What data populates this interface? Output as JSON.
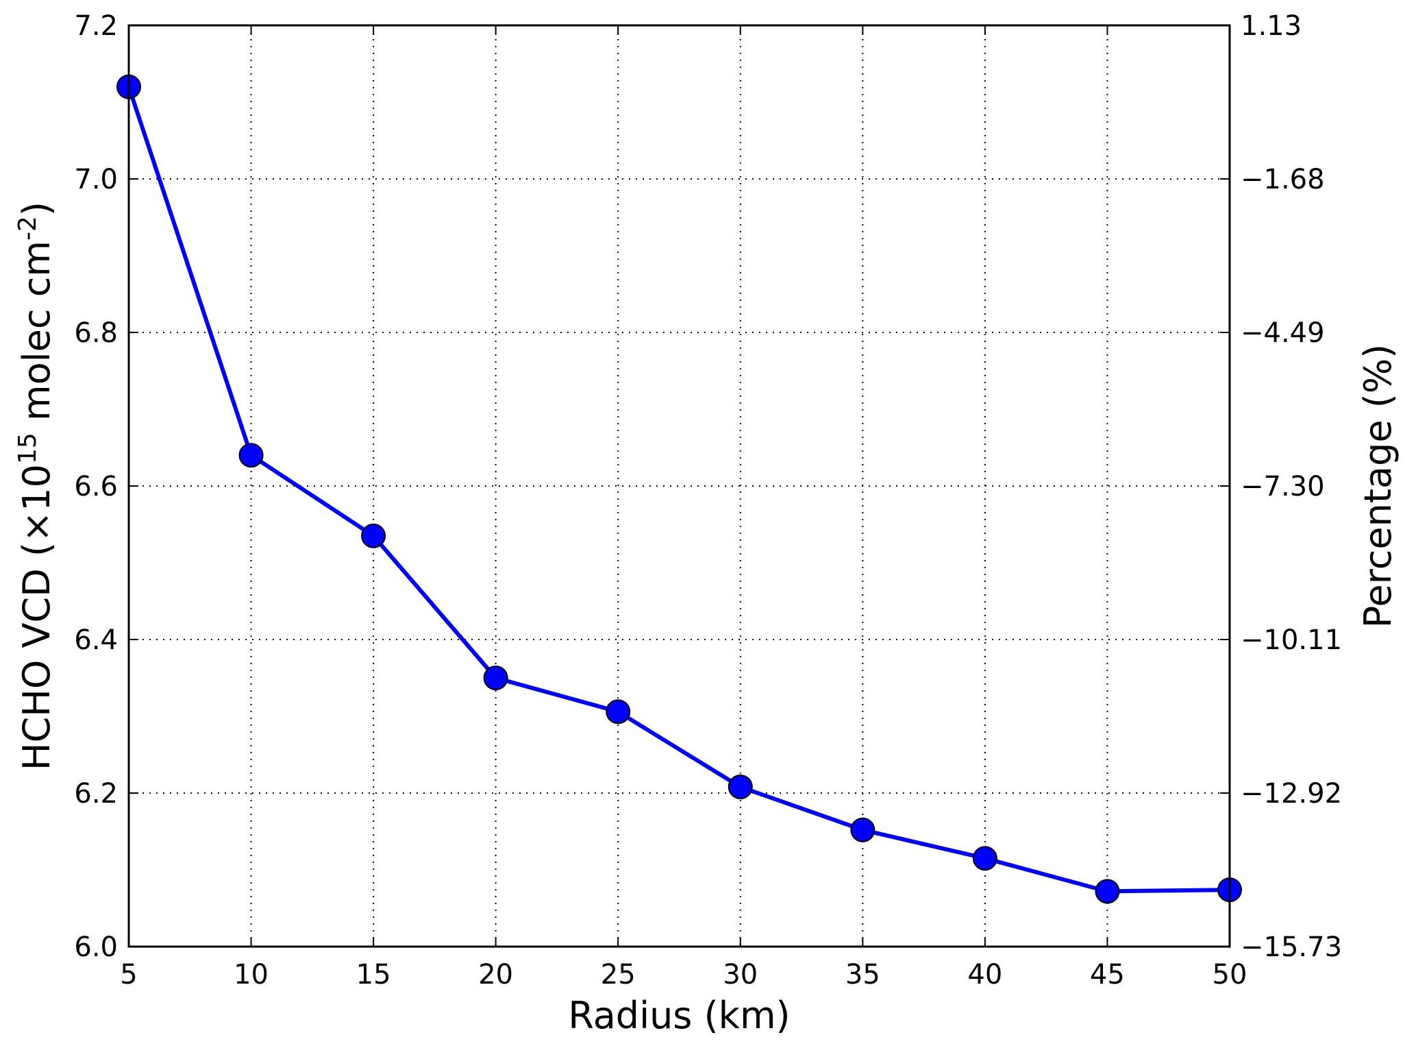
{
  "chart_data": {
    "type": "line",
    "x": [
      5,
      10,
      15,
      20,
      25,
      30,
      35,
      40,
      45,
      50
    ],
    "series": [
      {
        "values": [
          7.12,
          6.64,
          6.535,
          6.35,
          6.306,
          6.208,
          6.152,
          6.115,
          6.072,
          6.074
        ]
      }
    ],
    "xlabel": "Radius (km)",
    "ylabel": {
      "prefix": "HCHO VCD (×10",
      "exp1": "15",
      "middle": " molec cm",
      "exp2": "-2",
      "suffix": ")"
    },
    "y2label": "Percentage (%)",
    "xlim": [
      5,
      50
    ],
    "ylim": [
      6.0,
      7.2
    ],
    "y2lim": [
      -15.73,
      1.13
    ],
    "xticks": [
      "5",
      "10",
      "15",
      "20",
      "25",
      "30",
      "35",
      "40",
      "45",
      "50"
    ],
    "yticks": [
      "6.0",
      "6.2",
      "6.4",
      "6.6",
      "6.8",
      "7.0",
      "7.2"
    ],
    "y2ticks": [
      "−15.73",
      "−12.92",
      "−10.11",
      "−7.30",
      "−4.49",
      "−1.68",
      "1.13"
    ],
    "grid": true,
    "line_color": "#0000ff",
    "marker_color": "#0000ff"
  }
}
